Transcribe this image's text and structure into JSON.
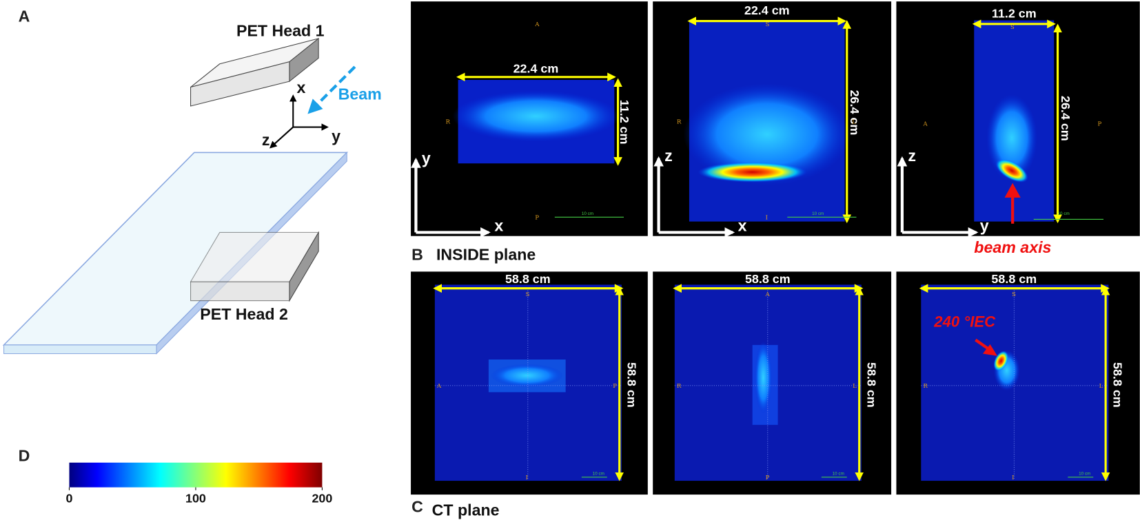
{
  "panel_a": {
    "label": "A",
    "head1": "PET Head 1",
    "head2": "PET Head 2",
    "beam": "Beam",
    "axis_x": "x",
    "axis_y": "y",
    "axis_z": "z"
  },
  "panel_b": {
    "label": "B",
    "title": "INSIDE plane",
    "annotation": "beam axis",
    "images": [
      {
        "width": "22.4 cm",
        "height": "11.2 cm",
        "h_axis": "x",
        "v_axis": "y",
        "top": "A",
        "bottom": "P",
        "left": "R",
        "scale_bar": "10 cm"
      },
      {
        "width": "22.4 cm",
        "height": "26.4 cm",
        "h_axis": "x",
        "v_axis": "z",
        "top": "S",
        "bottom": "I",
        "left": "R",
        "right": "L",
        "scale_bar": "10 cm"
      },
      {
        "width": "11.2 cm",
        "height": "26.4 cm",
        "h_axis": "y",
        "v_axis": "z",
        "top": "S",
        "left": "A",
        "right": "P",
        "scale_bar": "10 cm"
      }
    ]
  },
  "panel_c": {
    "label": "C",
    "title": "CT plane",
    "annotation": "240 °IEC",
    "images": [
      {
        "width": "58.8 cm",
        "height": "58.8 cm",
        "top": "S",
        "bottom": "I",
        "left": "A",
        "right": "P",
        "scale_bar": "10 cm"
      },
      {
        "width": "58.8 cm",
        "height": "58.8 cm",
        "top": "A",
        "bottom": "P",
        "left": "R",
        "right": "L",
        "scale_bar": "10 cm"
      },
      {
        "width": "58.8 cm",
        "height": "58.8 cm",
        "top": "S",
        "bottom": "I",
        "left": "R",
        "right": "L",
        "scale_bar": "10 cm"
      }
    ]
  },
  "panel_d": {
    "label": "D",
    "colorbar": {
      "lim": [
        0,
        200
      ],
      "ticks": [
        0,
        100,
        200
      ]
    }
  }
}
